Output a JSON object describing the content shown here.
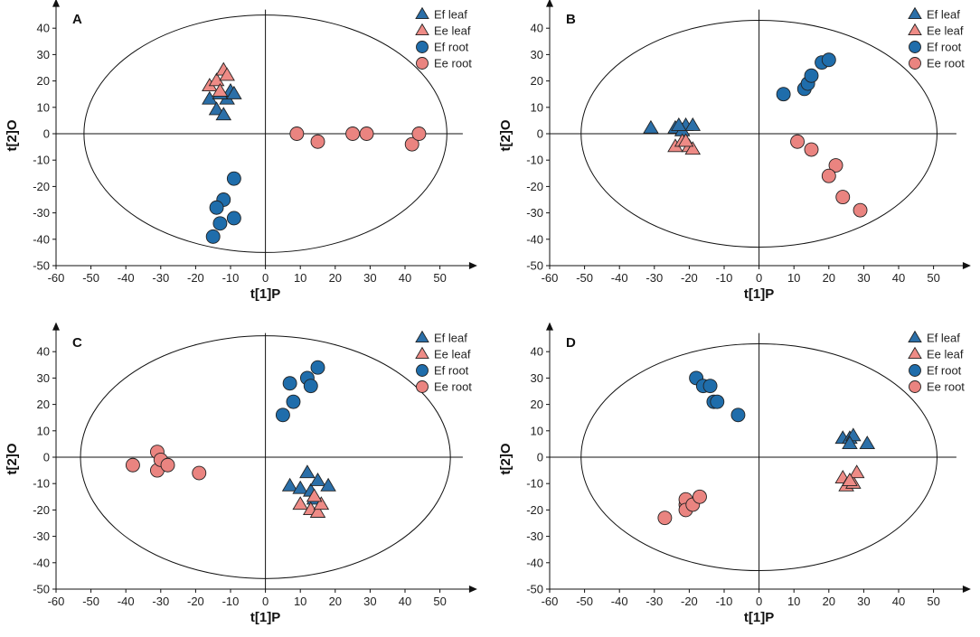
{
  "colors": {
    "leaf_ef": "#2b6fa8",
    "leaf_ee": "#ee8b86",
    "root_ef": "#1f6dab",
    "root_ee": "#ea8480",
    "marker_stroke": "#222222",
    "axis": "#111111"
  },
  "chart_data": [
    {
      "type": "scatter",
      "panel_label": "A",
      "xlabel": "t[1]P",
      "ylabel": "t[2]O",
      "xlim": [
        -60,
        55
      ],
      "ylim": [
        -50,
        45
      ],
      "xticks": [
        -60,
        -50,
        -40,
        -30,
        -20,
        -10,
        0,
        10,
        20,
        30,
        40,
        50
      ],
      "yticks": [
        -50,
        -40,
        -30,
        -20,
        -10,
        0,
        10,
        20,
        30,
        40
      ],
      "ellipse": {
        "cx": 0,
        "cy": 0,
        "rx": 52,
        "ry": 45
      },
      "legend": [
        "Ef leaf",
        "Ee leaf",
        "Ef root",
        "Ee root"
      ],
      "series": [
        {
          "name": "Ef leaf",
          "marker": "triangle",
          "points": [
            [
              -16,
              13
            ],
            [
              -14,
              9
            ],
            [
              -12,
              7
            ],
            [
              -11,
              13
            ],
            [
              -10,
              16
            ],
            [
              -9,
              15
            ],
            [
              -13,
              15
            ]
          ]
        },
        {
          "name": "Ee leaf",
          "marker": "triangle",
          "points": [
            [
              -16,
              18
            ],
            [
              -14,
              20
            ],
            [
              -12,
              24
            ],
            [
              -11,
              22
            ],
            [
              -13,
              16
            ]
          ]
        },
        {
          "name": "Ef root",
          "marker": "circle",
          "points": [
            [
              -9,
              -17
            ],
            [
              -12,
              -25
            ],
            [
              -14,
              -28
            ],
            [
              -9,
              -32
            ],
            [
              -13,
              -34
            ],
            [
              -15,
              -39
            ]
          ]
        },
        {
          "name": "Ee root",
          "marker": "circle",
          "points": [
            [
              9,
              0
            ],
            [
              15,
              -3
            ],
            [
              25,
              0
            ],
            [
              29,
              0
            ],
            [
              42,
              -4
            ],
            [
              44,
              0
            ]
          ]
        }
      ]
    },
    {
      "type": "scatter",
      "panel_label": "B",
      "xlabel": "t[1]P",
      "ylabel": "t[2]O",
      "xlim": [
        -60,
        55
      ],
      "ylim": [
        -50,
        45
      ],
      "xticks": [
        -60,
        -50,
        -40,
        -30,
        -20,
        -10,
        0,
        10,
        20,
        30,
        40,
        50
      ],
      "yticks": [
        -50,
        -40,
        -30,
        -20,
        -10,
        0,
        10,
        20,
        30,
        40
      ],
      "ellipse": {
        "cx": 0,
        "cy": 0,
        "rx": 51,
        "ry": 43
      },
      "legend": [
        "Ef leaf",
        "Ee leaf",
        "Ef root",
        "Ee root"
      ],
      "series": [
        {
          "name": "Ef leaf",
          "marker": "triangle",
          "points": [
            [
              -31,
              2
            ],
            [
              -24,
              2
            ],
            [
              -22,
              1
            ],
            [
              -21,
              3
            ],
            [
              -19,
              3
            ],
            [
              -23,
              3
            ]
          ]
        },
        {
          "name": "Ee leaf",
          "marker": "triangle",
          "points": [
            [
              -24,
              -5
            ],
            [
              -22,
              -3
            ],
            [
              -20,
              -5
            ],
            [
              -19,
              -6
            ],
            [
              -21,
              -3
            ]
          ]
        },
        {
          "name": "Ef root",
          "marker": "circle",
          "points": [
            [
              7,
              15
            ],
            [
              13,
              17
            ],
            [
              14,
              19
            ],
            [
              15,
              22
            ],
            [
              18,
              27
            ],
            [
              20,
              28
            ]
          ]
        },
        {
          "name": "Ee root",
          "marker": "circle",
          "points": [
            [
              11,
              -3
            ],
            [
              15,
              -6
            ],
            [
              22,
              -12
            ],
            [
              20,
              -16
            ],
            [
              24,
              -24
            ],
            [
              29,
              -29
            ]
          ]
        }
      ]
    },
    {
      "type": "scatter",
      "panel_label": "C",
      "xlabel": "t[1]P",
      "ylabel": "t[2]O",
      "xlim": [
        -60,
        55
      ],
      "ylim": [
        -50,
        45
      ],
      "xticks": [
        -60,
        -50,
        -40,
        -30,
        -20,
        -10,
        0,
        10,
        20,
        30,
        40,
        50
      ],
      "yticks": [
        -50,
        -40,
        -30,
        -20,
        -10,
        0,
        10,
        20,
        30,
        40
      ],
      "ellipse": {
        "cx": 0,
        "cy": 0,
        "rx": 53,
        "ry": 46
      },
      "legend": [
        "Ef leaf",
        "Ee leaf",
        "Ef root",
        "Ee root"
      ],
      "series": [
        {
          "name": "Ef leaf",
          "marker": "triangle",
          "points": [
            [
              7,
              -11
            ],
            [
              10,
              -12
            ],
            [
              12,
              -6
            ],
            [
              13,
              -13
            ],
            [
              15,
              -9
            ],
            [
              18,
              -11
            ],
            [
              14,
              -16
            ]
          ]
        },
        {
          "name": "Ee leaf",
          "marker": "triangle",
          "points": [
            [
              10,
              -18
            ],
            [
              13,
              -20
            ],
            [
              15,
              -21
            ],
            [
              16,
              -18
            ],
            [
              14,
              -15
            ]
          ]
        },
        {
          "name": "Ef root",
          "marker": "circle",
          "points": [
            [
              5,
              16
            ],
            [
              8,
              21
            ],
            [
              7,
              28
            ],
            [
              12,
              30
            ],
            [
              13,
              27
            ],
            [
              15,
              34
            ]
          ]
        },
        {
          "name": "Ee root",
          "marker": "circle",
          "points": [
            [
              -38,
              -3
            ],
            [
              -31,
              -5
            ],
            [
              -31,
              2
            ],
            [
              -30,
              -1
            ],
            [
              -28,
              -3
            ],
            [
              -19,
              -6
            ]
          ]
        }
      ]
    },
    {
      "type": "scatter",
      "panel_label": "D",
      "xlabel": "t[1]P",
      "ylabel": "t[2]O",
      "xlim": [
        -60,
        55
      ],
      "ylim": [
        -50,
        45
      ],
      "xticks": [
        -60,
        -50,
        -40,
        -30,
        -20,
        -10,
        0,
        10,
        20,
        30,
        40,
        50
      ],
      "yticks": [
        -50,
        -40,
        -30,
        -20,
        -10,
        0,
        10,
        20,
        30,
        40
      ],
      "ellipse": {
        "cx": 0,
        "cy": 0,
        "rx": 51,
        "ry": 43
      },
      "legend": [
        "Ef leaf",
        "Ee leaf",
        "Ef root",
        "Ee root"
      ],
      "series": [
        {
          "name": "Ef leaf",
          "marker": "triangle",
          "points": [
            [
              24,
              7
            ],
            [
              26,
              7
            ],
            [
              27,
              8
            ],
            [
              26,
              5
            ],
            [
              31,
              5
            ]
          ]
        },
        {
          "name": "Ee leaf",
          "marker": "triangle",
          "points": [
            [
              24,
              -8
            ],
            [
              25,
              -11
            ],
            [
              27,
              -10
            ],
            [
              28,
              -6
            ],
            [
              26,
              -9
            ]
          ]
        },
        {
          "name": "Ef root",
          "marker": "circle",
          "points": [
            [
              -18,
              30
            ],
            [
              -16,
              27
            ],
            [
              -14,
              27
            ],
            [
              -13,
              21
            ],
            [
              -12,
              21
            ],
            [
              -6,
              16
            ]
          ]
        },
        {
          "name": "Ee root",
          "marker": "circle",
          "points": [
            [
              -27,
              -23
            ],
            [
              -21,
              -18
            ],
            [
              -21,
              -16
            ],
            [
              -21,
              -20
            ],
            [
              -19,
              -18
            ],
            [
              -17,
              -15
            ]
          ]
        }
      ]
    }
  ]
}
